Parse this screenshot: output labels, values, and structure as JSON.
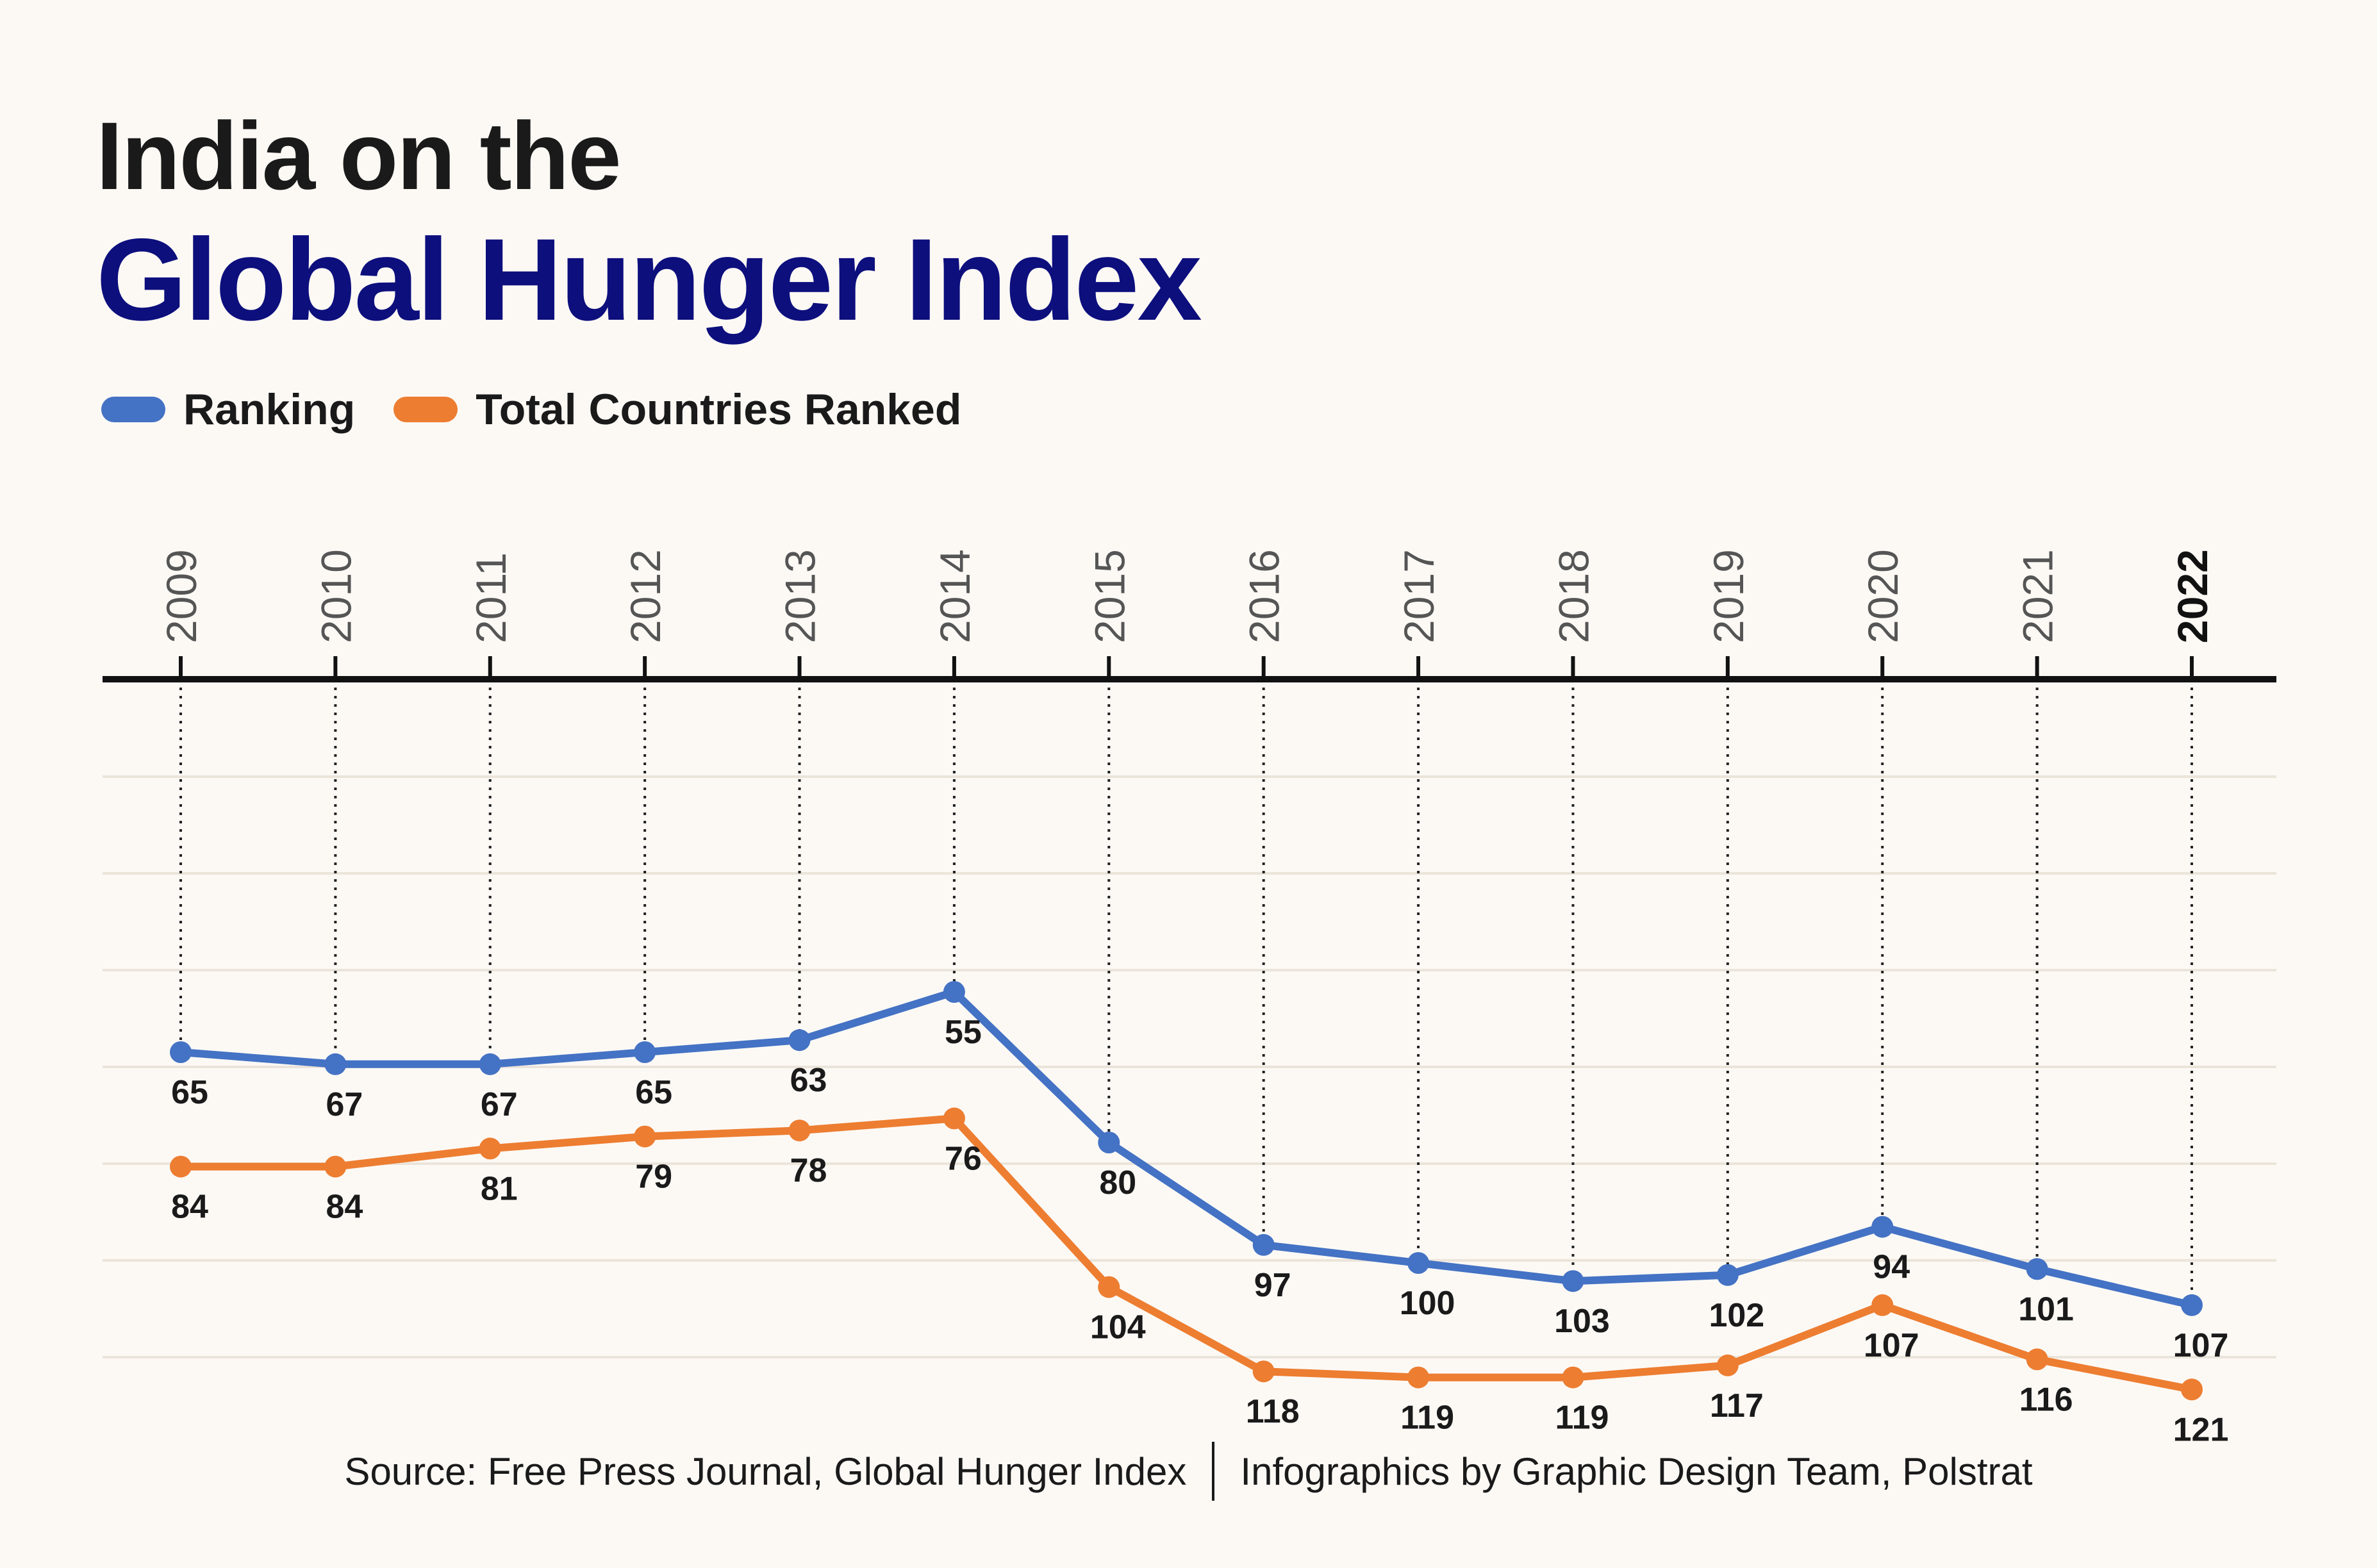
{
  "title": {
    "line1": "India on the",
    "line2": "Global Hunger Index"
  },
  "legend": {
    "ranking_label": "Ranking",
    "total_label": "Total Countries Ranked"
  },
  "colors": {
    "ranking": "#4472c4",
    "total": "#ed7d31",
    "title_accent": "#0d0f7d",
    "axis": "#111111",
    "grid": "#ebe4da"
  },
  "chart_data": {
    "type": "line",
    "title": "India on the Global Hunger Index",
    "categories": [
      "2009",
      "2010",
      "2011",
      "2012",
      "2013",
      "2014",
      "2015",
      "2016",
      "2017",
      "2018",
      "2019",
      "2020",
      "2021",
      "2022"
    ],
    "highlight_category": "2022",
    "series": [
      {
        "name": "Ranking",
        "values": [
          65,
          67,
          67,
          65,
          63,
          55,
          80,
          97,
          100,
          103,
          102,
          94,
          101,
          107
        ]
      },
      {
        "name": "Total Countries Ranked",
        "values": [
          84,
          84,
          81,
          79,
          78,
          76,
          104,
          118,
          119,
          119,
          117,
          107,
          116,
          121
        ]
      }
    ],
    "y_axis": "inverted",
    "ylim": [
      0,
      140
    ],
    "xlabel": "",
    "ylabel": "",
    "legend_position": "top-left",
    "grid": true
  },
  "footer": {
    "source": "Source: Free Press Journal, Global Hunger Index",
    "credit": "Infographics by Graphic Design Team, Polstrat"
  }
}
